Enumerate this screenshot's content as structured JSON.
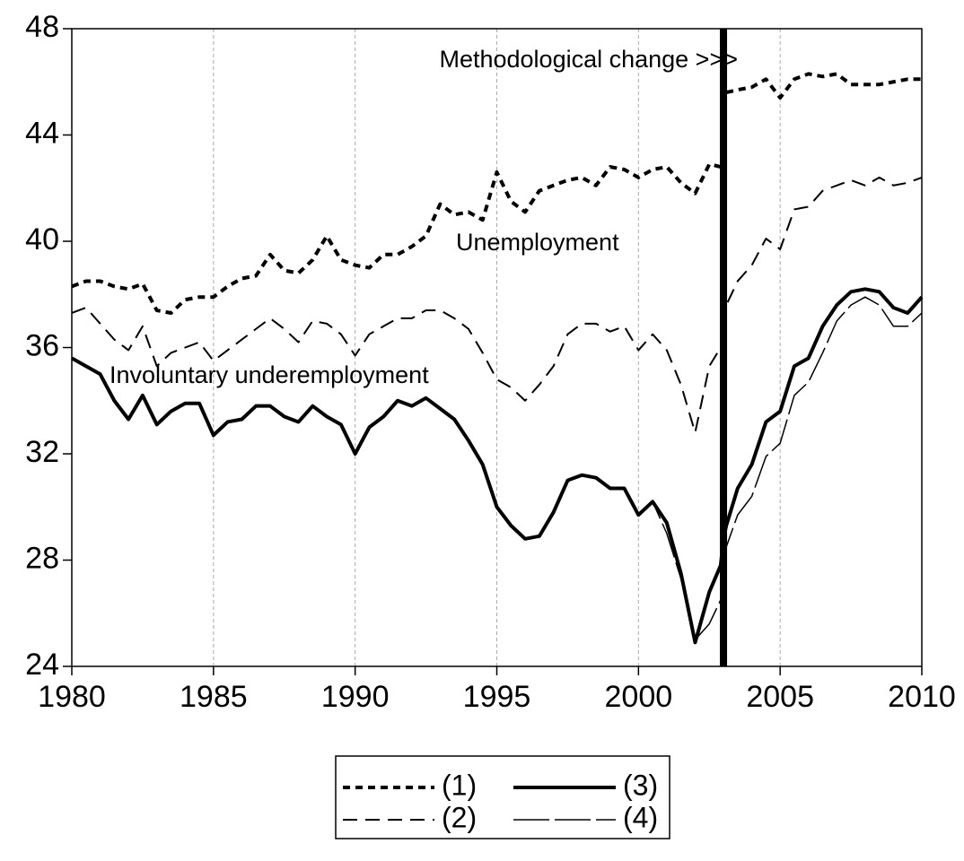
{
  "chart_data": {
    "type": "line",
    "x": [
      1980,
      1980.5,
      1981,
      1981.5,
      1982,
      1982.5,
      1983,
      1983.5,
      1984,
      1984.5,
      1985,
      1985.5,
      1986,
      1986.5,
      1987,
      1987.5,
      1988,
      1988.5,
      1989,
      1989.5,
      1990,
      1990.5,
      1991,
      1991.5,
      1992,
      1992.5,
      1993,
      1993.5,
      1994,
      1994.5,
      1995,
      1995.5,
      1996,
      1996.5,
      1997,
      1997.5,
      1998,
      1998.5,
      1999,
      1999.5,
      2000,
      2000.5,
      2001,
      2001.5,
      2002,
      2002.5,
      2002.9,
      2003,
      2003.1,
      2003.5,
      2004,
      2004.5,
      2005,
      2005.5,
      2006,
      2006.5,
      2007,
      2007.5,
      2008,
      2008.5,
      2009,
      2009.5,
      2010
    ],
    "series": [
      {
        "name": "(1)",
        "color": "#000000",
        "style": "dotted",
        "values": [
          38.3,
          38.5,
          38.5,
          38.3,
          38.2,
          38.4,
          37.4,
          37.3,
          37.8,
          37.9,
          37.9,
          38.3,
          38.6,
          38.7,
          39.5,
          38.9,
          38.8,
          39.3,
          40.2,
          39.3,
          39.1,
          39.0,
          39.5,
          39.5,
          39.8,
          40.2,
          41.4,
          41.0,
          41.1,
          40.8,
          42.6,
          41.5,
          41.1,
          41.9,
          42.1,
          42.3,
          42.4,
          42.1,
          42.8,
          42.7,
          42.4,
          42.7,
          42.8,
          42.2,
          41.8,
          42.9,
          42.8,
          null,
          45.6,
          45.7,
          45.8,
          46.1,
          45.4,
          46.1,
          46.3,
          46.2,
          46.3,
          45.9,
          45.9,
          45.9,
          46.0,
          46.1,
          46.1
        ]
      },
      {
        "name": "(2)",
        "color": "#000000",
        "style": "dashed",
        "values": [
          37.3,
          37.5,
          36.9,
          36.3,
          35.9,
          36.8,
          35.3,
          35.8,
          36.0,
          36.2,
          35.5,
          35.9,
          36.3,
          36.7,
          37.1,
          36.7,
          36.2,
          37.0,
          36.9,
          36.5,
          35.7,
          36.5,
          36.8,
          37.1,
          37.1,
          37.4,
          37.4,
          37.1,
          36.7,
          35.8,
          34.8,
          34.5,
          34.0,
          34.6,
          35.3,
          36.5,
          36.9,
          36.9,
          36.6,
          36.8,
          35.9,
          36.5,
          35.9,
          34.6,
          32.8,
          35.3,
          36.0,
          37.4,
          37.6,
          38.5,
          39.1,
          40.1,
          39.7,
          41.2,
          41.3,
          41.9,
          42.1,
          42.3,
          42.1,
          42.4,
          42.1,
          42.2,
          42.4
        ]
      },
      {
        "name": "(3)",
        "color": "#000000",
        "style": "solid",
        "values": [
          35.6,
          35.3,
          35.0,
          34.0,
          33.3,
          34.2,
          33.1,
          33.6,
          33.9,
          33.9,
          32.7,
          33.2,
          33.3,
          33.8,
          33.8,
          33.4,
          33.2,
          33.8,
          33.4,
          33.1,
          32.0,
          33.0,
          33.4,
          34.0,
          33.8,
          34.1,
          33.7,
          33.3,
          32.5,
          31.6,
          30.0,
          29.3,
          28.8,
          28.9,
          29.8,
          31.0,
          31.2,
          31.1,
          30.7,
          30.7,
          29.7,
          30.2,
          29.4,
          27.5,
          24.9,
          26.8,
          27.8,
          28.8,
          29.3,
          30.7,
          31.6,
          33.2,
          33.6,
          35.3,
          35.6,
          36.8,
          37.6,
          38.1,
          38.2,
          38.1,
          37.5,
          37.3,
          37.9
        ]
      },
      {
        "name": "(4)",
        "color": "#000000",
        "style": "longdash",
        "values": [
          35.6,
          35.3,
          35.0,
          34.0,
          33.3,
          34.2,
          33.1,
          33.6,
          33.9,
          33.9,
          32.7,
          33.2,
          33.3,
          33.8,
          33.8,
          33.4,
          33.2,
          33.8,
          33.4,
          33.1,
          32.0,
          33.0,
          33.4,
          34.0,
          33.8,
          34.1,
          33.7,
          33.3,
          32.5,
          31.6,
          30.0,
          29.3,
          28.8,
          28.9,
          29.8,
          31.0,
          31.2,
          31.1,
          30.7,
          30.7,
          29.7,
          30.2,
          29.0,
          27.3,
          25.0,
          25.6,
          26.5,
          27.8,
          28.5,
          29.7,
          30.4,
          31.9,
          32.4,
          34.2,
          34.7,
          35.8,
          37.0,
          37.6,
          37.9,
          37.6,
          36.8,
          36.8,
          37.3
        ]
      }
    ],
    "xlim": [
      1980,
      2010
    ],
    "xticks": [
      1980,
      1985,
      1990,
      1995,
      2000,
      2005,
      2010
    ],
    "ylim": [
      24,
      48
    ],
    "yticks": [
      24,
      28,
      32,
      36,
      40,
      44,
      48
    ],
    "grid_x": true,
    "break_x": 2003,
    "annotations": [
      "Methodological change >>>",
      "Unemployment",
      "Involuntary underemployment"
    ]
  }
}
